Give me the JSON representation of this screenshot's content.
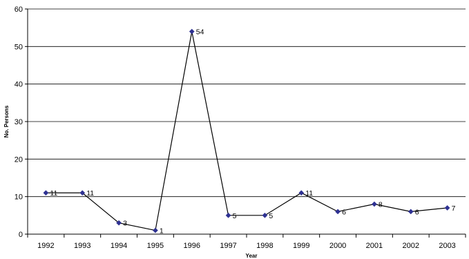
{
  "chart_data": {
    "type": "line",
    "title": "",
    "xlabel": "Year",
    "ylabel": "No. Persons",
    "ylim": [
      0,
      60
    ],
    "yticks": [
      0,
      10,
      20,
      30,
      40,
      50,
      60
    ],
    "grid": true,
    "legend": "none",
    "categories": [
      "1992",
      "1993",
      "1994",
      "1995",
      "1996",
      "1997",
      "1998",
      "1999",
      "2000",
      "2001",
      "2002",
      "2003"
    ],
    "series": [
      {
        "values": [
          11,
          11,
          3,
          1,
          54,
          5,
          5,
          11,
          6,
          8,
          6,
          7
        ],
        "data_labels": [
          "11",
          "11",
          "3",
          "1",
          "54",
          "5",
          "5",
          "11",
          "6",
          "8",
          "6",
          "7"
        ],
        "line_color": "#000000",
        "marker_color": "#2E3192",
        "marker": "diamond"
      }
    ]
  }
}
